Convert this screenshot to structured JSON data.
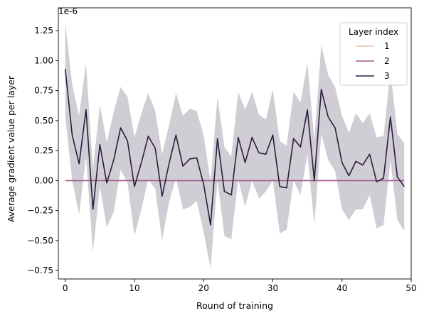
{
  "chart_data": {
    "type": "line",
    "xlabel": "Round of training",
    "ylabel": "Average gradient value per layer",
    "offset_text": "1e-6",
    "xlim": [
      -1,
      50
    ],
    "ylim": [
      -0.82,
      1.44
    ],
    "x_ticks": [
      0,
      10,
      20,
      30,
      40,
      50
    ],
    "x_tick_labels": [
      "0",
      "10",
      "20",
      "30",
      "40",
      "50"
    ],
    "y_ticks": [
      -0.75,
      -0.5,
      -0.25,
      0.0,
      0.25,
      0.5,
      0.75,
      1.0,
      1.25
    ],
    "y_tick_labels": [
      "−0.75",
      "−0.50",
      "−0.25",
      "0.00",
      "0.25",
      "0.50",
      "0.75",
      "1.00",
      "1.25"
    ],
    "legend_title": "Layer index",
    "legend_placement": "top-right",
    "x": [
      0,
      1,
      2,
      3,
      4,
      5,
      6,
      7,
      8,
      9,
      10,
      11,
      12,
      13,
      14,
      15,
      16,
      17,
      18,
      19,
      20,
      21,
      22,
      23,
      24,
      25,
      26,
      27,
      28,
      29,
      30,
      31,
      32,
      33,
      34,
      35,
      36,
      37,
      38,
      39,
      40,
      41,
      42,
      43,
      44,
      45,
      46,
      47,
      48,
      49
    ],
    "series": [
      {
        "name": "1",
        "color": "#e8c0b6",
        "values": [
          0,
          0,
          0,
          0,
          0,
          0,
          0,
          0,
          0,
          0,
          0,
          0,
          0,
          0,
          0,
          0,
          0,
          0,
          0,
          0,
          0,
          0,
          0,
          0,
          0,
          0,
          0,
          0,
          0,
          0,
          0,
          0,
          0,
          0,
          0,
          0,
          0,
          0,
          0,
          0,
          0,
          0,
          0,
          0,
          0,
          0,
          0,
          0,
          0,
          0
        ]
      },
      {
        "name": "2",
        "color": "#a05a8e",
        "values": [
          0,
          0,
          0,
          0,
          0,
          0,
          0,
          0,
          0,
          0,
          0,
          0,
          0,
          0,
          0,
          0,
          0,
          0,
          0,
          0,
          0,
          0,
          0,
          0,
          0,
          0,
          0,
          0,
          0,
          0,
          0,
          0,
          0,
          0,
          0,
          0,
          0,
          0,
          0,
          0,
          0,
          0,
          0,
          0,
          0,
          0,
          0,
          0,
          0,
          0
        ]
      },
      {
        "name": "3",
        "color": "#2a1e3c",
        "band_color": "#2a1e3c",
        "values": [
          0.93,
          0.38,
          0.14,
          0.59,
          -0.24,
          0.3,
          -0.02,
          0.17,
          0.44,
          0.33,
          -0.05,
          0.15,
          0.37,
          0.27,
          -0.13,
          0.14,
          0.38,
          0.12,
          0.18,
          0.19,
          -0.03,
          -0.37,
          0.35,
          -0.09,
          -0.12,
          0.36,
          0.15,
          0.36,
          0.23,
          0.22,
          0.38,
          -0.05,
          -0.06,
          0.35,
          0.28,
          0.59,
          0.0,
          0.76,
          0.53,
          0.44,
          0.15,
          0.04,
          0.16,
          0.13,
          0.22,
          -0.01,
          0.02,
          0.53,
          0.03,
          -0.05
        ],
        "ci_upper": [
          1.32,
          0.8,
          0.54,
          0.98,
          0.1,
          0.63,
          0.32,
          0.57,
          0.78,
          0.7,
          0.36,
          0.56,
          0.73,
          0.58,
          0.22,
          0.46,
          0.73,
          0.54,
          0.6,
          0.58,
          0.38,
          -0.01,
          0.7,
          0.28,
          0.2,
          0.74,
          0.59,
          0.74,
          0.55,
          0.51,
          0.76,
          0.33,
          0.29,
          0.74,
          0.65,
          0.98,
          0.34,
          1.13,
          0.88,
          0.78,
          0.54,
          0.4,
          0.56,
          0.48,
          0.56,
          0.36,
          0.37,
          0.92,
          0.39,
          0.31
        ],
        "ci_lower": [
          0.54,
          0.0,
          -0.28,
          0.2,
          -0.6,
          -0.05,
          -0.39,
          -0.26,
          0.09,
          -0.02,
          -0.46,
          -0.24,
          0.01,
          -0.07,
          -0.5,
          -0.18,
          0.02,
          -0.24,
          -0.22,
          -0.17,
          -0.43,
          -0.73,
          0.0,
          -0.46,
          -0.49,
          0.01,
          -0.22,
          0.0,
          -0.15,
          -0.09,
          0.0,
          -0.44,
          -0.41,
          0.0,
          -0.12,
          0.22,
          -0.37,
          0.39,
          0.17,
          0.08,
          -0.24,
          -0.33,
          -0.24,
          -0.24,
          -0.12,
          -0.4,
          -0.37,
          0.17,
          -0.33,
          -0.42
        ]
      }
    ]
  }
}
